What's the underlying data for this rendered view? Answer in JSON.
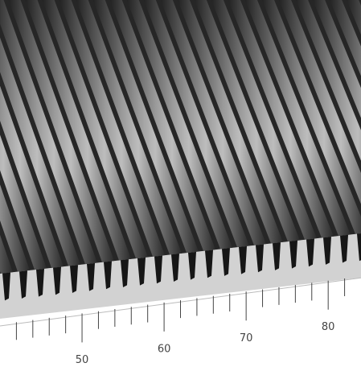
{
  "chart_data": {
    "type": "surface3d",
    "xlim": [
      40,
      84
    ],
    "xticks": [
      50,
      60,
      70,
      80
    ],
    "minor_xticks": [
      42,
      44,
      46,
      48,
      52,
      54,
      56,
      58,
      62,
      64,
      66,
      68,
      72,
      74,
      76,
      78,
      82
    ]
  }
}
